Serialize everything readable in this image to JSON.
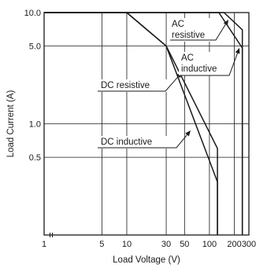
{
  "chart_data": {
    "type": "line",
    "title": "",
    "xlabel": "Load Voltage (V)",
    "ylabel": "Load Current (A)",
    "xscale": "log",
    "yscale": "log",
    "xlim": [
      1,
      300
    ],
    "ylim": [
      0.1,
      10
    ],
    "x_ticks": [
      {
        "value": 1,
        "label": "1"
      },
      {
        "value": 5,
        "label": "5"
      },
      {
        "value": 10,
        "label": "10"
      },
      {
        "value": 30,
        "label": "30"
      },
      {
        "value": 50,
        "label": "50"
      },
      {
        "value": 100,
        "label": "100"
      },
      {
        "value": 200,
        "label": "200"
      },
      {
        "value": 300,
        "label": "300"
      }
    ],
    "y_ticks": [
      {
        "value": 10,
        "label": "10.0"
      },
      {
        "value": 5,
        "label": "5.0"
      },
      {
        "value": 1,
        "label": "1.0"
      },
      {
        "value": 0.5,
        "label": "0.5"
      }
    ],
    "x_gridlines": [
      5,
      10,
      30,
      50,
      100,
      200
    ],
    "y_gridlines": [
      5,
      1,
      0.5
    ],
    "grid": true,
    "legend": "none",
    "series": [
      {
        "label": [
          "DC resistive"
        ],
        "x": [
          1,
          10,
          30,
          125,
          125
        ],
        "y": [
          10,
          10,
          5,
          0.6,
          0.1
        ]
      },
      {
        "label": [
          "DC inductive"
        ],
        "x": [
          1,
          10,
          30,
          125,
          125
        ],
        "y": [
          10,
          10,
          5,
          0.3,
          0.1
        ]
      },
      {
        "label": [
          "AC",
          "resistive"
        ],
        "x": [
          1,
          150,
          250,
          250
        ],
        "y": [
          10,
          10,
          7,
          0.1
        ]
      },
      {
        "label": [
          "AC",
          "inductive"
        ],
        "x": [
          1,
          130,
          250,
          250
        ],
        "y": [
          10,
          10,
          4.8,
          0.1
        ]
      }
    ]
  }
}
